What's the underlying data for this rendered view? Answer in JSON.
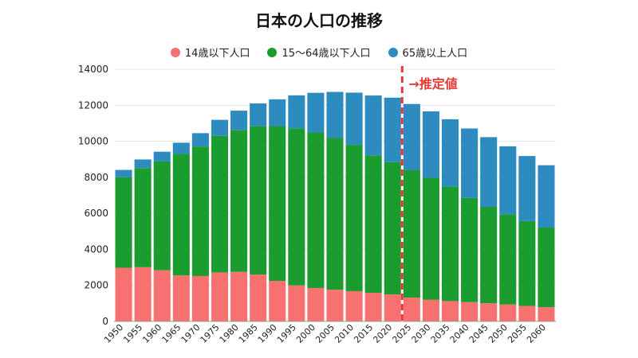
{
  "chart_data": {
    "type": "bar",
    "stacked": true,
    "title": "日本の人口の推移",
    "xlabel": "",
    "ylabel": "",
    "ylim": [
      0,
      14000
    ],
    "yticks": [
      0,
      2000,
      4000,
      6000,
      8000,
      10000,
      12000,
      14000
    ],
    "grid": true,
    "legend_position": "top",
    "categories": [
      "1950",
      "1955",
      "1960",
      "1965",
      "1970",
      "1975",
      "1980",
      "1985",
      "1990",
      "1995",
      "2000",
      "2005",
      "2010",
      "2015",
      "2020",
      "2025",
      "2030",
      "2035",
      "2040",
      "2045",
      "2050",
      "2055",
      "2060"
    ],
    "series": [
      {
        "name": "14歳以下人口",
        "color": "#f87171",
        "values": [
          2980,
          3010,
          2840,
          2550,
          2520,
          2720,
          2750,
          2600,
          2250,
          2000,
          1850,
          1760,
          1680,
          1590,
          1500,
          1320,
          1200,
          1130,
          1070,
          1010,
          940,
          860,
          790
        ]
      },
      {
        "name": "15〜64歳以下人口",
        "color": "#1a9c2e",
        "values": [
          5020,
          5500,
          6040,
          6750,
          7190,
          7580,
          7880,
          8250,
          8590,
          8720,
          8640,
          8420,
          8120,
          7630,
          7340,
          7090,
          6770,
          6350,
          5790,
          5350,
          5010,
          4710,
          4420
        ]
      },
      {
        "name": "65歳以上人口",
        "color": "#2e8bc0",
        "values": [
          410,
          480,
          540,
          620,
          740,
          890,
          1070,
          1250,
          1490,
          1830,
          2200,
          2560,
          2900,
          3320,
          3580,
          3660,
          3690,
          3740,
          3850,
          3870,
          3770,
          3610,
          3460
        ]
      }
    ],
    "annotation": {
      "text": "→推定値",
      "between": [
        "2020",
        "2025"
      ],
      "line_color": "#e53935"
    }
  }
}
